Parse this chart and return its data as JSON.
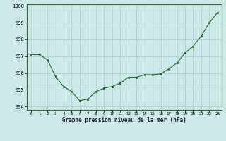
{
  "x": [
    0,
    1,
    2,
    3,
    4,
    5,
    6,
    7,
    8,
    9,
    10,
    11,
    12,
    13,
    14,
    15,
    16,
    17,
    18,
    19,
    20,
    21,
    22,
    23
  ],
  "y": [
    997.1,
    997.1,
    996.8,
    995.8,
    995.2,
    994.9,
    994.35,
    994.45,
    994.9,
    995.1,
    995.2,
    995.4,
    995.75,
    995.75,
    995.9,
    995.9,
    995.95,
    996.25,
    996.6,
    997.2,
    997.6,
    998.2,
    999.0,
    999.6
  ],
  "line_color": "#1a6b1a",
  "marker_color": "#1a6b1a",
  "bg_color": "#cce8e8",
  "grid_color": "#aacccc",
  "xlabel": "Graphe pression niveau de la mer (hPa)",
  "ylim": [
    993.8,
    1000.1
  ],
  "xlim": [
    -0.5,
    23.5
  ],
  "yticks": [
    994,
    995,
    996,
    997,
    998,
    999,
    1000
  ],
  "xtick_labels": [
    "0",
    "1",
    "2",
    "3",
    "4",
    "5",
    "6",
    "7",
    "8",
    "9",
    "10",
    "11",
    "12",
    "13",
    "14",
    "15",
    "16",
    "17",
    "18",
    "19",
    "20",
    "21",
    "22",
    "23"
  ],
  "figsize": [
    3.2,
    2.0
  ],
  "dpi": 100
}
